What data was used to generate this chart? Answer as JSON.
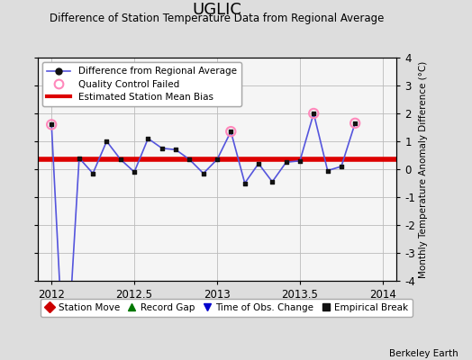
{
  "title": "UGLIC",
  "subtitle": "Difference of Station Temperature Data from Regional Average",
  "ylabel_right": "Monthly Temperature Anomaly Difference (°C)",
  "credit": "Berkeley Earth",
  "xlim": [
    2011.917,
    2014.083
  ],
  "ylim": [
    -4,
    4
  ],
  "yticks": [
    -4,
    -3,
    -2,
    -1,
    0,
    1,
    2,
    3,
    4
  ],
  "xticks": [
    2012,
    2012.5,
    2013,
    2013.5,
    2014
  ],
  "xticklabels": [
    "2012",
    "2012.5",
    "2013",
    "2013.5",
    "2014"
  ],
  "bias_level": 0.35,
  "main_line_color": "#5555dd",
  "main_marker_color": "#111111",
  "bias_color": "#dd0000",
  "qc_fail_color": "#ff88bb",
  "background_color": "#dddddd",
  "plot_bg_color": "#f5f5f5",
  "grid_color": "#bbbbbb",
  "x_data": [
    2012.0,
    2012.083,
    2012.167,
    2012.25,
    2012.333,
    2012.417,
    2012.5,
    2012.583,
    2012.667,
    2012.75,
    2012.833,
    2012.917,
    2013.0,
    2013.083,
    2013.167,
    2013.25,
    2013.333,
    2013.417,
    2013.5,
    2013.583,
    2013.667,
    2013.75,
    2013.833
  ],
  "y_data": [
    1.6,
    -8.0,
    0.4,
    -0.15,
    1.0,
    0.35,
    -0.1,
    1.1,
    0.75,
    0.7,
    0.35,
    -0.15,
    0.35,
    1.35,
    -0.5,
    0.2,
    -0.45,
    0.25,
    0.3,
    2.0,
    -0.05,
    0.1,
    1.65
  ],
  "qc_fail_indices": [
    0,
    13,
    19,
    22
  ],
  "legend_bottom_items": [
    {
      "label": "Station Move",
      "color": "#cc0000",
      "marker": "D"
    },
    {
      "label": "Record Gap",
      "color": "#007700",
      "marker": "^"
    },
    {
      "label": "Time of Obs. Change",
      "color": "#0000cc",
      "marker": "v"
    },
    {
      "label": "Empirical Break",
      "color": "#111111",
      "marker": "s"
    }
  ]
}
